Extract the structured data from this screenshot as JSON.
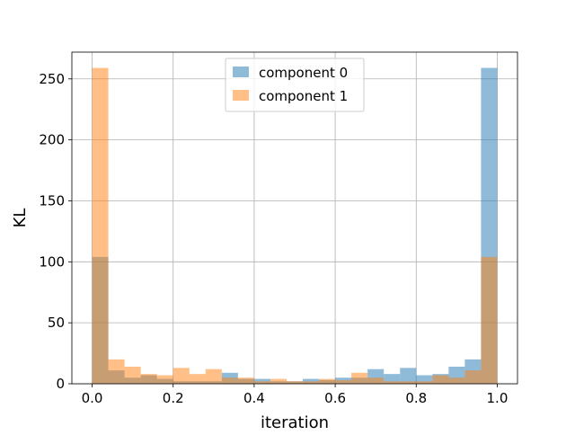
{
  "chart_data": {
    "type": "bar",
    "title": "",
    "xlabel": "iteration",
    "ylabel": "KL",
    "xlim": [
      -0.05,
      1.05
    ],
    "ylim": [
      0,
      271.95
    ],
    "grid": true,
    "legend_position": "top-center",
    "bin_width": 0.04,
    "bin_starts": [
      0.0,
      0.04,
      0.08,
      0.12,
      0.16,
      0.2,
      0.24,
      0.28,
      0.32,
      0.36,
      0.4,
      0.44,
      0.48,
      0.52,
      0.56,
      0.6,
      0.64,
      0.68,
      0.72,
      0.76,
      0.8,
      0.84,
      0.88,
      0.92,
      0.96
    ],
    "x_ticks": [
      "0.0",
      "0.2",
      "0.4",
      "0.6",
      "0.8",
      "1.0"
    ],
    "x_tick_values": [
      0.0,
      0.2,
      0.4,
      0.6,
      0.8,
      1.0
    ],
    "y_ticks": [
      "0",
      "50",
      "100",
      "150",
      "200",
      "250"
    ],
    "y_tick_values": [
      0,
      50,
      100,
      150,
      200,
      250
    ],
    "series": [
      {
        "name": "component 0",
        "color": "#1f77b4",
        "values": [
          104,
          11,
          5,
          7,
          4,
          2,
          2,
          2,
          9,
          4,
          4,
          2,
          2,
          4,
          3,
          5,
          5,
          12,
          8,
          13,
          7,
          8,
          14,
          20,
          259
        ]
      },
      {
        "name": "component 1",
        "color": "#ff7f0e",
        "values": [
          259,
          20,
          14,
          8,
          7,
          13,
          8,
          12,
          5,
          5,
          2,
          4,
          2,
          2,
          4,
          3,
          9,
          5,
          2,
          2,
          2,
          7,
          5,
          11,
          104
        ]
      }
    ]
  }
}
